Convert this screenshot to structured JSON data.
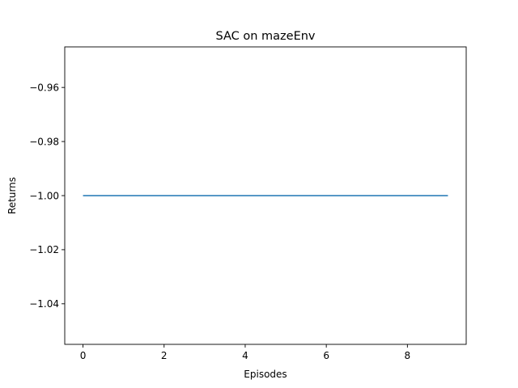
{
  "chart_data": {
    "type": "line",
    "title": "SAC on mazeEnv",
    "xlabel": "Episodes",
    "ylabel": "Returns",
    "xlim": [
      -0.45,
      9.45
    ],
    "ylim": [
      -1.055,
      -0.945
    ],
    "xticks": [
      0,
      2,
      4,
      6,
      8
    ],
    "yticks": [
      -0.96,
      -0.98,
      -1.0,
      -1.02,
      -1.04
    ],
    "xtick_labels": [
      "0",
      "2",
      "4",
      "6",
      "8"
    ],
    "ytick_labels": [
      "−0.96",
      "−0.98",
      "−1.00",
      "−1.02",
      "−1.04"
    ],
    "grid": false,
    "series": [
      {
        "color": "#1f77b4",
        "x": [
          0,
          1,
          2,
          3,
          4,
          5,
          6,
          7,
          8,
          9
        ],
        "y": [
          -1.0,
          -1.0,
          -1.0,
          -1.0,
          -1.0,
          -1.0,
          -1.0,
          -1.0,
          -1.0,
          -1.0
        ]
      }
    ]
  }
}
